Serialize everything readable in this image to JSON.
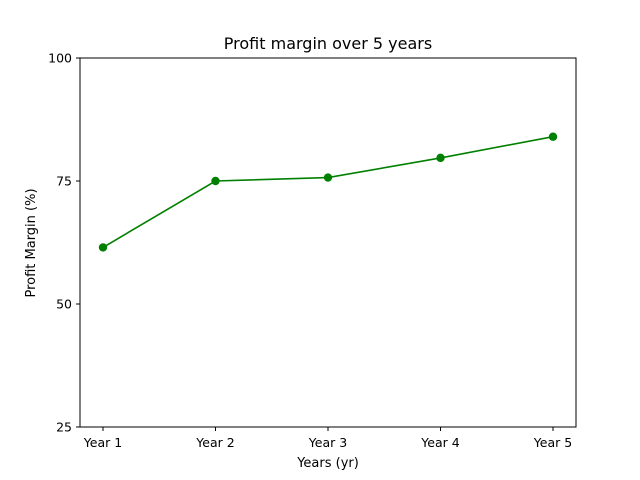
{
  "chart_data": {
    "type": "line",
    "title": "Profit margin over 5 years",
    "xlabel": "Years (yr)",
    "ylabel": "Profit Margin (%)",
    "categories": [
      "Year 1",
      "Year 2",
      "Year 3",
      "Year 4",
      "Year 5"
    ],
    "values": [
      61.5,
      75.0,
      75.7,
      79.7,
      84.0
    ],
    "ylim": [
      25,
      100
    ],
    "yticks": [
      25,
      50,
      75,
      100
    ],
    "ytick_labels": [
      "25",
      "50",
      "75",
      "100"
    ],
    "grid": false,
    "legend": null,
    "color": "#008000"
  }
}
